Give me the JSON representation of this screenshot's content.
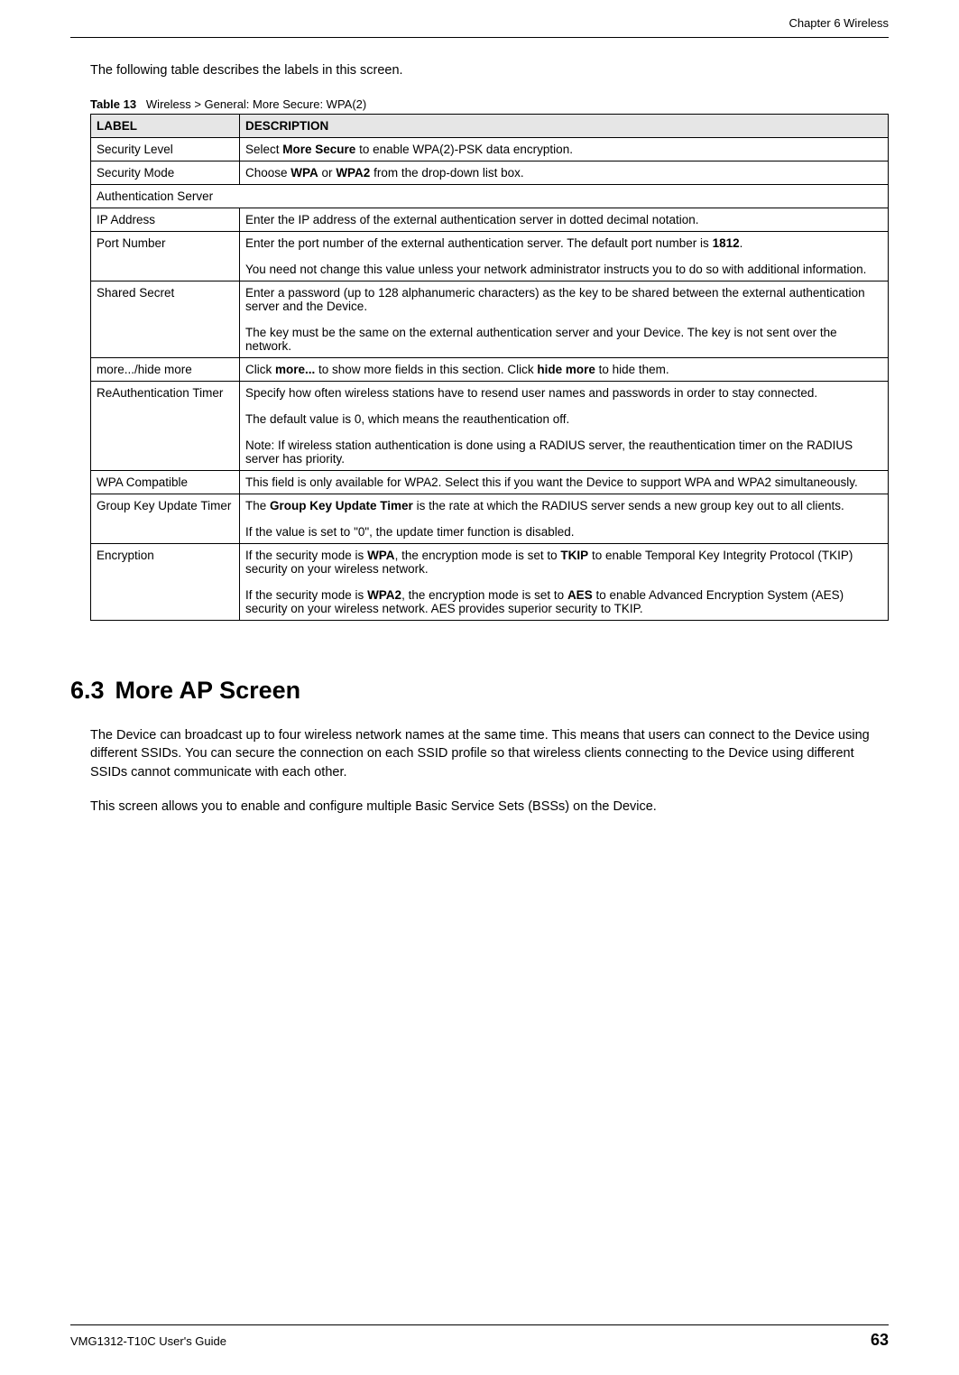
{
  "header": {
    "chapter": "Chapter 6 Wireless"
  },
  "intro": "The following table describes the labels in this screen.",
  "tableCaption": {
    "prefix": "Table 13",
    "title": "Wireless > General: More Secure: WPA(2)"
  },
  "tableHeaders": {
    "label": "LABEL",
    "description": "DESCRIPTION"
  },
  "rows": {
    "securityLevel": {
      "label": "Security Level",
      "desc_a": "Select ",
      "desc_b": "More Secure",
      "desc_c": " to enable WPA(2)-PSK data encryption."
    },
    "securityMode": {
      "label": "Security Mode",
      "desc_a": "Choose ",
      "desc_b": "WPA",
      "desc_c": " or ",
      "desc_d": "WPA2",
      "desc_e": " from the drop-down list box."
    },
    "authServer": {
      "label": "Authentication Server"
    },
    "ipAddress": {
      "label": "IP Address",
      "desc": "Enter the IP address of the external authentication server in dotted decimal notation."
    },
    "portNumber": {
      "label": "Port Number",
      "p1_a": "Enter the port number of the external authentication server. The default port number is ",
      "p1_b": "1812",
      "p1_c": ".",
      "p2": "You need not change this value unless your network administrator instructs you to do so with additional information."
    },
    "sharedSecret": {
      "label": "Shared Secret",
      "p1": "Enter a password (up to 128 alphanumeric characters) as the key to be shared between the external authentication server and the Device.",
      "p2": "The key must be the same on the external authentication server and your Device. The key is not sent over the network."
    },
    "moreHide": {
      "label": "more.../hide more",
      "a": "Click ",
      "b": "more...",
      "c": " to show more fields in this section. Click ",
      "d": "hide more",
      "e": " to hide them."
    },
    "reauth": {
      "label": "ReAuthentication Timer",
      "p1": "Specify how often wireless stations have to resend user names and passwords in order to stay connected.",
      "p2": "The default value is 0, which means the reauthentication off.",
      "noteLabel": "Note: ",
      "noteText": "If wireless station authentication is done using a RADIUS server, the reauthentication timer on the RADIUS server has priority."
    },
    "wpaCompat": {
      "label": "WPA Compatible",
      "desc": "This field is only available for WPA2. Select this if you want the Device to support WPA and WPA2 simultaneously."
    },
    "groupKey": {
      "label": "Group Key Update Timer",
      "p1_a": "The ",
      "p1_b": "Group Key Update Timer",
      "p1_c": " is the rate at which the RADIUS server sends a new group key out to all clients.",
      "p2": "If the value is set to \"0\", the update timer function is disabled."
    },
    "encryption": {
      "label": "Encryption",
      "p1_a": "If the security mode is ",
      "p1_b": "WPA",
      "p1_c": ", the encryption mode is set to ",
      "p1_d": "TKIP",
      "p1_e": " to enable Temporal Key Integrity Protocol (TKIP) security on your wireless network.",
      "p2_a": "If the security mode is ",
      "p2_b": "WPA2",
      "p2_c": ", the encryption mode is set to  ",
      "p2_d": "AES",
      "p2_e": " to enable Advanced Encryption System (AES) security on your wireless network. AES provides superior security to TKIP."
    }
  },
  "section": {
    "number": "6.3",
    "title": "More AP Screen",
    "para1": "The Device can broadcast up to four wireless network names at the same time. This means that users can connect to the Device using different SSIDs. You can secure the connection on each SSID profile so that wireless clients connecting to the Device using different SSIDs cannot communicate with each other.",
    "para2": "This screen allows you to enable and configure multiple Basic Service Sets (BSSs) on the Device."
  },
  "footer": {
    "guide": "VMG1312-T10C User's Guide",
    "page": "63"
  },
  "colors": {
    "headerBg": "#e6e6e6",
    "border": "#000000",
    "text": "#000000",
    "background": "#ffffff"
  },
  "typography": {
    "body_fontsize": 14.5,
    "table_fontsize": 13.5,
    "heading_fontsize": 27,
    "footer_fontsize": 13,
    "pagenum_fontsize": 18
  }
}
